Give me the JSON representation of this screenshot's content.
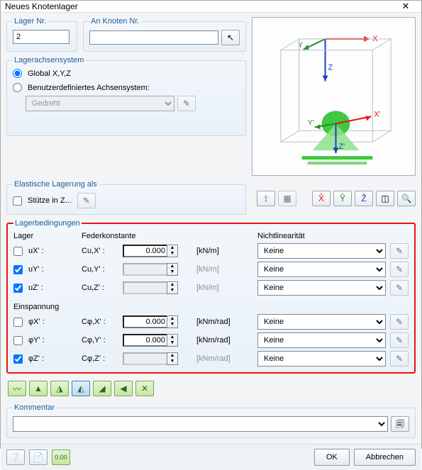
{
  "title": "Neues Knotenlager",
  "groups": {
    "lager_nr": "Lager Nr.",
    "an_knoten": "An Knoten Nr.",
    "achsen": "Lagerachsensystem",
    "elast": "Elastische Lagerung als",
    "beding": "Lagerbedingungen",
    "kommentar": "Kommentar"
  },
  "fields": {
    "lager_nr_value": "2",
    "an_knoten_value": "",
    "axis_global": "Global X,Y,Z",
    "axis_user": "Benutzerdefiniertes Achsensystem:",
    "axis_combo": "Gedreht",
    "stuetze_label": "Stütze in Z..."
  },
  "beding": {
    "hdr_lager": "Lager",
    "hdr_feder": "Federkonstante",
    "hdr_nl": "Nichtlinearität",
    "hdr_einsp": "Einspannung",
    "rows_support": [
      {
        "chk": false,
        "sym": "uX'",
        "c_lbl": "Cu,X' :",
        "val": "0.000",
        "unit": "[kN/m]",
        "nl": "Keine",
        "enabled": true
      },
      {
        "chk": true,
        "sym": "uY'",
        "c_lbl": "Cu,Y' :",
        "val": "",
        "unit": "[kN/m]",
        "nl": "Keine",
        "enabled": false
      },
      {
        "chk": true,
        "sym": "uZ'",
        "c_lbl": "Cu,Z' :",
        "val": "",
        "unit": "[kN/m]",
        "nl": "Keine",
        "enabled": false
      }
    ],
    "rows_restraint": [
      {
        "chk": false,
        "sym": "φX'",
        "c_lbl": "Cφ,X' :",
        "val": "0.000",
        "unit": "[kNm/rad]",
        "nl": "Keine",
        "enabled": true
      },
      {
        "chk": false,
        "sym": "φY'",
        "c_lbl": "Cφ,Y' :",
        "val": "0.000",
        "unit": "[kNm/rad]",
        "nl": "Keine",
        "enabled": true
      },
      {
        "chk": true,
        "sym": "φZ'",
        "c_lbl": "Cφ,Z' :",
        "val": "",
        "unit": "[kNm/rad]",
        "nl": "Keine",
        "enabled": false
      }
    ]
  },
  "buttons": {
    "ok": "OK",
    "cancel": "Abbrechen"
  },
  "preview": {
    "axis_colors": {
      "x": "#e11",
      "y": "#2a8a2a",
      "z": "#1f3fbf"
    },
    "box_color": "#b7c1c9",
    "support_fill": "#3ec93e",
    "support_cone": "#8de28d"
  }
}
